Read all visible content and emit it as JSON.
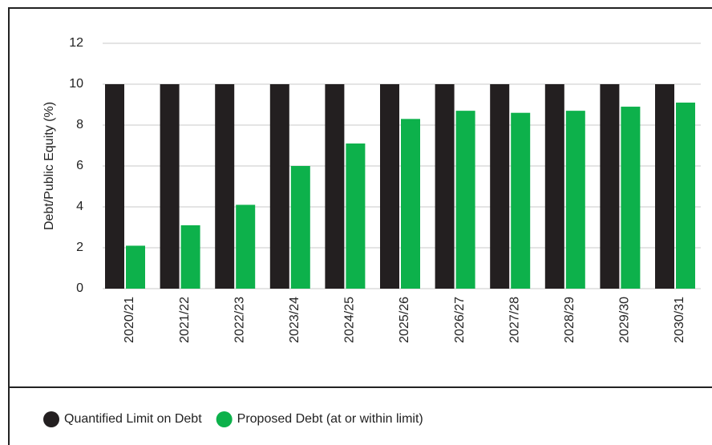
{
  "chart_data": {
    "type": "bar",
    "categories": [
      "2020/21",
      "2021/22",
      "2022/23",
      "2023/24",
      "2024/25",
      "2025/26",
      "2026/27",
      "2027/28",
      "2028/29",
      "2029/30",
      "2030/31"
    ],
    "series": [
      {
        "name": "Quantified Limit on Debt",
        "color": "#231f20",
        "values": [
          10,
          10,
          10,
          10,
          10,
          10,
          10,
          10,
          10,
          10,
          10
        ]
      },
      {
        "name": "Proposed Debt (at or within limit)",
        "color": "#0db14b",
        "values": [
          2.1,
          3.1,
          4.1,
          6.0,
          7.1,
          8.3,
          8.7,
          8.6,
          8.7,
          8.9,
          9.1
        ]
      }
    ],
    "y_label": "Debt/Public Equity (%)",
    "ylim": [
      0,
      12
    ],
    "yticks": [
      0,
      2,
      4,
      6,
      8,
      10,
      12
    ],
    "grid": true,
    "legend": "bottom"
  }
}
